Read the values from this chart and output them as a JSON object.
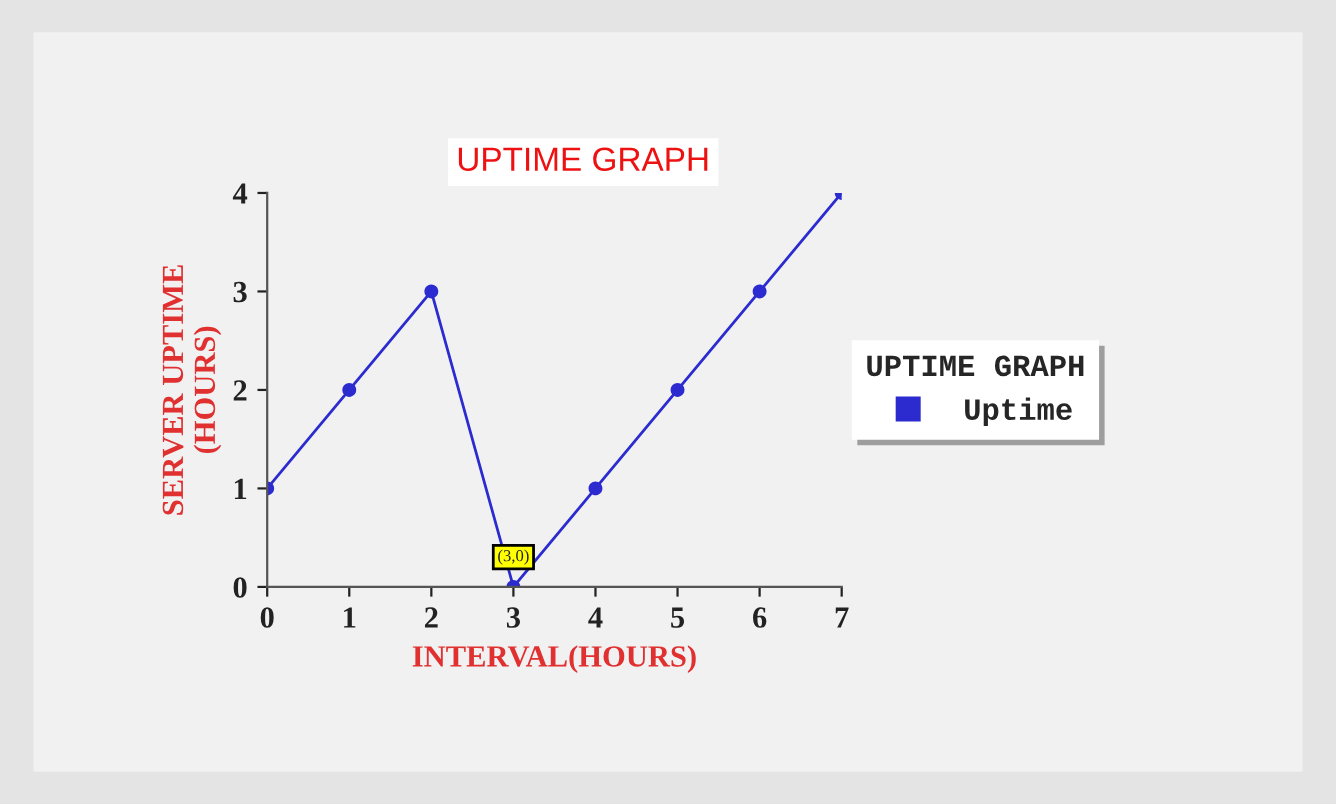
{
  "chart_data": {
    "type": "line",
    "title": "UPTIME GRAPH",
    "xlabel": "INTERVAL(HOURS)",
    "ylabel": "SERVER UPTIME\n(HOURS)",
    "legend_title": "UPTIME GRAPH",
    "x": [
      0,
      1,
      2,
      3,
      4,
      5,
      6,
      7
    ],
    "series": [
      {
        "name": "Uptime",
        "color": "#2b2bd0",
        "values": [
          1,
          2,
          3,
          0,
          1,
          2,
          3,
          4
        ]
      }
    ],
    "xlim": [
      0,
      7
    ],
    "xticks": [
      0,
      1,
      2,
      3,
      4,
      5,
      6,
      7
    ],
    "ylim": [
      0,
      4
    ],
    "yticks": [
      0,
      1,
      2,
      3,
      4
    ],
    "annotations": [
      {
        "text": "(3,0)",
        "x": 3,
        "y": 0
      }
    ],
    "marker": "circle",
    "line_style": "solid",
    "grid": false,
    "legend": "right"
  }
}
